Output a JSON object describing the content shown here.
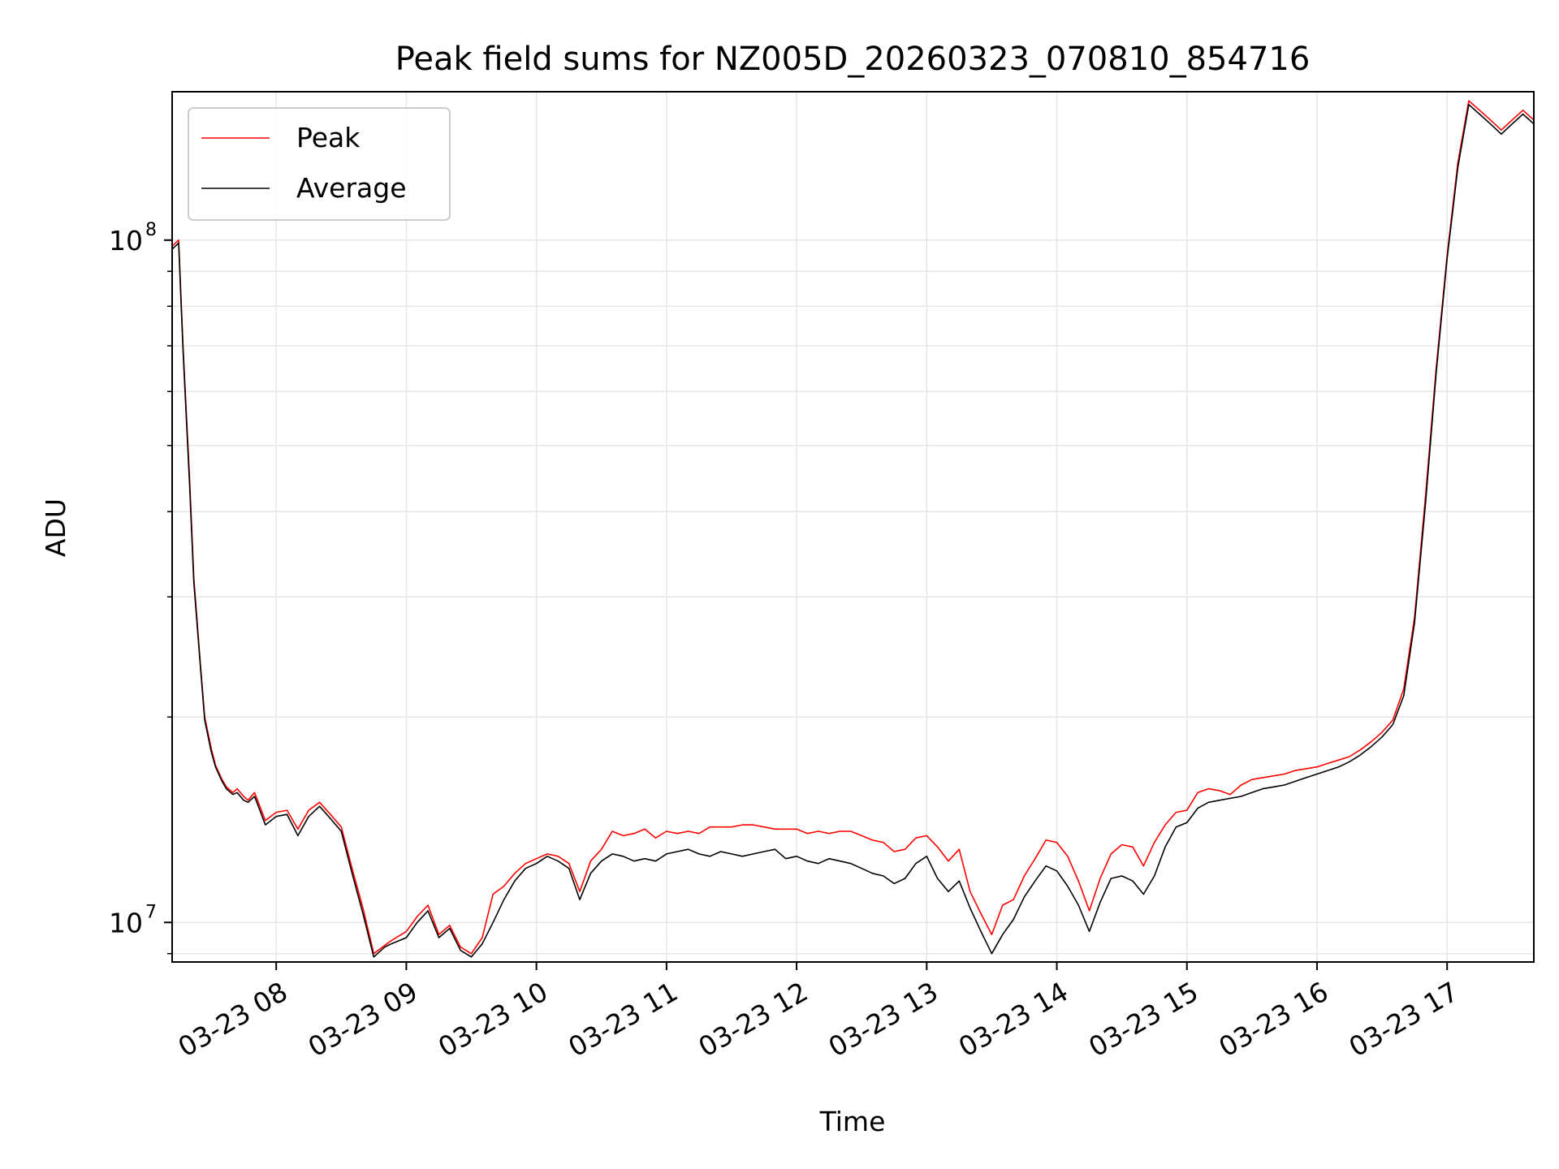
{
  "chart_data": {
    "type": "line",
    "title": "Peak field sums for NZ005D_20260323_070810_854716",
    "xlabel": "Time",
    "ylabel": "ADU",
    "yscale": "log",
    "ylim": [
      8750000,
      165000000
    ],
    "xlim": [
      "2026-03-23 07:12",
      "2026-03-23 17:40"
    ],
    "grid": true,
    "legend_position": "upper left",
    "x_ticks": [
      "03-23 08",
      "03-23 09",
      "03-23 10",
      "03-23 11",
      "03-23 12",
      "03-23 13",
      "03-23 14",
      "03-23 15",
      "03-23 16",
      "03-23 17"
    ],
    "y_ticks": [
      "10^8",
      "10^7"
    ],
    "x": [
      "07:12",
      "07:15",
      "07:17",
      "07:20",
      "07:22",
      "07:25",
      "07:27",
      "07:30",
      "07:32",
      "07:35",
      "07:37",
      "07:40",
      "07:42",
      "07:45",
      "07:47",
      "07:50",
      "07:55",
      "08:00",
      "08:05",
      "08:10",
      "08:15",
      "08:20",
      "08:25",
      "08:30",
      "08:35",
      "08:40",
      "08:45",
      "08:50",
      "08:53",
      "09:00",
      "09:05",
      "09:10",
      "09:15",
      "09:20",
      "09:25",
      "09:30",
      "09:35",
      "09:40",
      "09:45",
      "09:50",
      "09:55",
      "10:00",
      "10:05",
      "10:10",
      "10:15",
      "10:20",
      "10:25",
      "10:30",
      "10:35",
      "10:40",
      "10:45",
      "10:50",
      "10:55",
      "11:00",
      "11:05",
      "11:10",
      "11:15",
      "11:20",
      "11:25",
      "11:30",
      "11:35",
      "11:40",
      "11:45",
      "11:50",
      "11:55",
      "12:00",
      "12:05",
      "12:10",
      "12:15",
      "12:20",
      "12:25",
      "12:30",
      "12:35",
      "12:40",
      "12:45",
      "12:50",
      "12:55",
      "13:00",
      "13:05",
      "13:10",
      "13:15",
      "13:20",
      "13:25",
      "13:30",
      "13:35",
      "13:40",
      "13:45",
      "13:50",
      "13:55",
      "14:00",
      "14:05",
      "14:10",
      "14:15",
      "14:20",
      "14:25",
      "14:30",
      "14:35",
      "14:40",
      "14:45",
      "14:50",
      "14:55",
      "15:00",
      "15:05",
      "15:10",
      "15:15",
      "15:20",
      "15:25",
      "15:30",
      "15:35",
      "15:40",
      "15:45",
      "15:50",
      "15:55",
      "16:00",
      "16:05",
      "16:10",
      "16:15",
      "16:20",
      "16:25",
      "16:30",
      "16:35",
      "16:40",
      "16:45",
      "16:50",
      "16:55",
      "17:00",
      "17:05",
      "17:10",
      "17:15",
      "17:20",
      "17:25",
      "17:30",
      "17:35",
      "17:40"
    ],
    "series": [
      {
        "name": "Peak",
        "color": "#ff0000",
        "values": [
          98000000,
          100000000,
          70000000,
          45000000,
          32000000,
          24000000,
          20000000,
          18000000,
          17000000,
          16200000,
          15800000,
          15500000,
          15700000,
          15300000,
          15100000,
          15500000,
          14100000,
          14500000,
          14600000,
          13700000,
          14600000,
          15000000,
          14400000,
          13800000,
          12000000,
          10500000,
          9000000,
          9250000,
          9400000,
          9700000,
          10200000,
          10600000,
          9600000,
          9900000,
          9200000,
          9000000,
          9500000,
          11000000,
          11300000,
          11800000,
          12200000,
          12400000,
          12600000,
          12500000,
          12200000,
          11100000,
          12300000,
          12800000,
          13600000,
          13400000,
          13500000,
          13700000,
          13300000,
          13600000,
          13500000,
          13600000,
          13500000,
          13800000,
          13800000,
          13800000,
          13900000,
          13900000,
          13800000,
          13700000,
          13700000,
          13700000,
          13500000,
          13600000,
          13500000,
          13600000,
          13600000,
          13400000,
          13200000,
          13100000,
          12700000,
          12800000,
          13300000,
          13400000,
          12900000,
          12300000,
          12800000,
          11100000,
          10300000,
          9600000,
          10600000,
          10800000,
          11700000,
          12400000,
          13200000,
          13100000,
          12500000,
          11500000,
          10400000,
          11600000,
          12600000,
          13000000,
          12900000,
          12100000,
          13100000,
          13900000,
          14500000,
          14600000,
          15500000,
          15700000,
          15600000,
          15400000,
          15900000,
          16200000,
          16300000,
          16400000,
          16500000,
          16700000,
          16800000,
          16900000,
          17100000,
          17300000,
          17500000,
          17900000,
          18400000,
          19000000,
          19800000,
          22000000,
          28000000,
          42000000,
          65000000,
          95000000,
          130000000,
          160000000,
          155000000,
          150000000,
          145000000,
          150000000,
          155000000,
          150000000
        ]
      },
      {
        "name": "Average",
        "color": "#000000",
        "values": [
          97000000,
          99000000,
          69000000,
          44000000,
          31500000,
          23800000,
          19800000,
          17800000,
          16900000,
          16100000,
          15700000,
          15400000,
          15500000,
          15100000,
          15000000,
          15300000,
          13900000,
          14300000,
          14400000,
          13400000,
          14300000,
          14800000,
          14200000,
          13600000,
          11800000,
          10300000,
          8900000,
          9200000,
          9300000,
          9500000,
          10000000,
          10400000,
          9500000,
          9800000,
          9100000,
          8900000,
          9300000,
          10000000,
          10800000,
          11500000,
          12000000,
          12200000,
          12500000,
          12300000,
          12000000,
          10800000,
          11800000,
          12300000,
          12600000,
          12500000,
          12300000,
          12400000,
          12300000,
          12600000,
          12700000,
          12800000,
          12600000,
          12500000,
          12700000,
          12600000,
          12500000,
          12600000,
          12700000,
          12800000,
          12400000,
          12500000,
          12300000,
          12200000,
          12400000,
          12300000,
          12200000,
          12000000,
          11800000,
          11700000,
          11400000,
          11600000,
          12200000,
          12500000,
          11600000,
          11100000,
          11500000,
          10500000,
          9700000,
          9000000,
          9600000,
          10100000,
          10900000,
          11500000,
          12100000,
          11900000,
          11300000,
          10600000,
          9700000,
          10700000,
          11600000,
          11700000,
          11500000,
          11000000,
          11700000,
          12900000,
          13800000,
          14000000,
          14700000,
          15000000,
          15100000,
          15200000,
          15300000,
          15500000,
          15700000,
          15800000,
          15900000,
          16100000,
          16300000,
          16500000,
          16700000,
          16900000,
          17200000,
          17600000,
          18100000,
          18700000,
          19500000,
          21500000,
          27500000,
          41000000,
          64000000,
          94000000,
          128000000,
          158000000,
          153000000,
          148000000,
          143000000,
          148000000,
          153000000,
          148000000
        ]
      }
    ]
  }
}
